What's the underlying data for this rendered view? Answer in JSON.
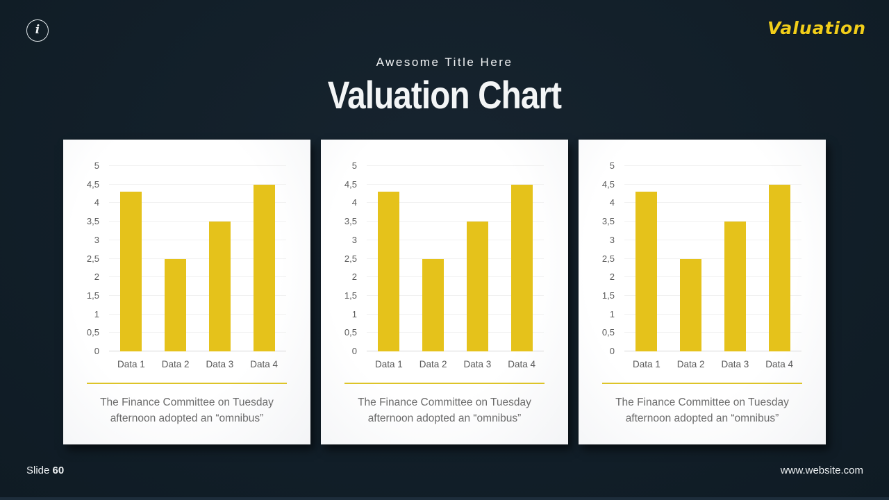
{
  "slide": {
    "brand": "Valuation",
    "subtitle": "Awesome Title Here",
    "title": "Valuation Chart",
    "info_icon_glyph": "i",
    "footer_left_label": "Slide",
    "footer_left_number": "60",
    "footer_right": "www.website.com"
  },
  "colors": {
    "background": "#13202a",
    "card": "#ffffff",
    "bar": "#e5c21b",
    "brand_yellow": "#f2ce1a",
    "divider_yellow": "#ddc428",
    "axis_text": "#5a5a5a",
    "caption_text": "#6b6b6b",
    "gridline": "#f1f1f1",
    "baseline": "#d7d7d7"
  },
  "cards": [
    {
      "caption_line1": "The Finance Committee on Tuesday",
      "caption_line2": "afternoon adopted an “omnibus”"
    },
    {
      "caption_line1": "The Finance Committee on Tuesday",
      "caption_line2": "afternoon adopted an “omnibus”"
    },
    {
      "caption_line1": "The Finance Committee on Tuesday",
      "caption_line2": "afternoon adopted an “omnibus”"
    }
  ],
  "chart_data": [
    {
      "type": "bar",
      "categories": [
        "Data 1",
        "Data 2",
        "Data 3",
        "Data 4"
      ],
      "values": [
        4.3,
        2.5,
        3.5,
        4.5
      ],
      "title": "",
      "xlabel": "",
      "ylabel": "",
      "ylim": [
        0,
        5
      ],
      "ytick_step": 0.5,
      "ytick_labels": [
        "0",
        "0,5",
        "1",
        "1,5",
        "2",
        "2,5",
        "3",
        "3,5",
        "4",
        "4,5",
        "5"
      ],
      "grid": true,
      "legend": false,
      "bar_color": "#e5c21b"
    },
    {
      "type": "bar",
      "categories": [
        "Data 1",
        "Data 2",
        "Data 3",
        "Data 4"
      ],
      "values": [
        4.3,
        2.5,
        3.5,
        4.5
      ],
      "title": "",
      "xlabel": "",
      "ylabel": "",
      "ylim": [
        0,
        5
      ],
      "ytick_step": 0.5,
      "ytick_labels": [
        "0",
        "0,5",
        "1",
        "1,5",
        "2",
        "2,5",
        "3",
        "3,5",
        "4",
        "4,5",
        "5"
      ],
      "grid": true,
      "legend": false,
      "bar_color": "#e5c21b"
    },
    {
      "type": "bar",
      "categories": [
        "Data 1",
        "Data 2",
        "Data 3",
        "Data 4"
      ],
      "values": [
        4.3,
        2.5,
        3.5,
        4.5
      ],
      "title": "",
      "xlabel": "",
      "ylabel": "",
      "ylim": [
        0,
        5
      ],
      "ytick_step": 0.5,
      "ytick_labels": [
        "0",
        "0,5",
        "1",
        "1,5",
        "2",
        "2,5",
        "3",
        "3,5",
        "4",
        "4,5",
        "5"
      ],
      "grid": true,
      "legend": false,
      "bar_color": "#e5c21b"
    }
  ]
}
